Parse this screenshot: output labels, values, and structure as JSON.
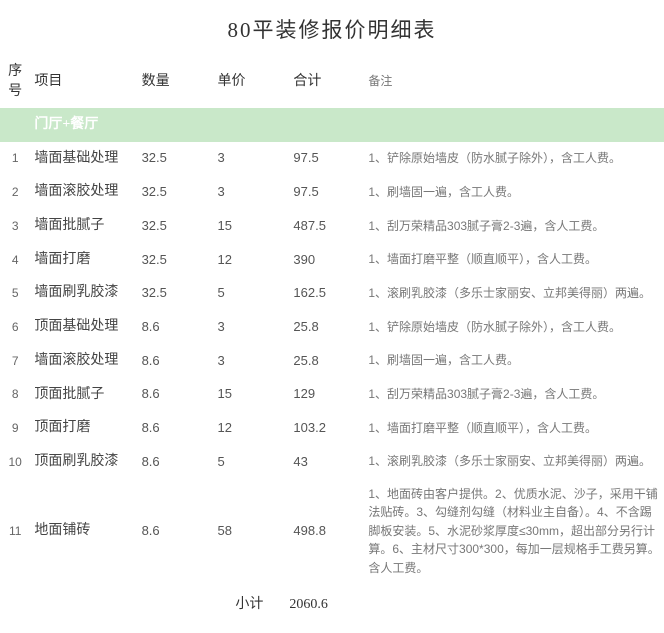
{
  "title": "80平装修报价明细表",
  "headers": {
    "idx": "序号",
    "item": "项目",
    "qty": "数量",
    "price": "单价",
    "total": "合计",
    "note": "备注"
  },
  "section": "门厅+餐厅",
  "rows": [
    {
      "idx": "1",
      "item": "墙面基础处理",
      "qty": "32.5",
      "price": "3",
      "total": "97.5",
      "note": "1、铲除原始墙皮（防水腻子除外），含工人费。"
    },
    {
      "idx": "2",
      "item": "墙面滚胶处理",
      "qty": "32.5",
      "price": "3",
      "total": "97.5",
      "note": "1、刷墙固一遍，含工人费。"
    },
    {
      "idx": "3",
      "item": "墙面批腻子",
      "qty": "32.5",
      "price": "15",
      "total": "487.5",
      "note": "1、刮万荣精品303腻子膏2-3遍，含人工费。"
    },
    {
      "idx": "4",
      "item": "墙面打磨",
      "qty": "32.5",
      "price": "12",
      "total": "390",
      "note": "1、墙面打磨平整（顺直顺平），含人工费。"
    },
    {
      "idx": "5",
      "item": "墙面刷乳胶漆",
      "qty": "32.5",
      "price": "5",
      "total": "162.5",
      "note": "1、滚刷乳胶漆（多乐士家丽安、立邦美得丽）两遍。"
    },
    {
      "idx": "6",
      "item": "顶面基础处理",
      "qty": "8.6",
      "price": "3",
      "total": "25.8",
      "note": "1、铲除原始墙皮（防水腻子除外），含工人费。"
    },
    {
      "idx": "7",
      "item": "墙面滚胶处理",
      "qty": "8.6",
      "price": "3",
      "total": "25.8",
      "note": "1、刷墙固一遍，含工人费。"
    },
    {
      "idx": "8",
      "item": "顶面批腻子",
      "qty": "8.6",
      "price": "15",
      "total": "129",
      "note": "1、刮万荣精品303腻子膏2-3遍，含人工费。"
    },
    {
      "idx": "9",
      "item": "顶面打磨",
      "qty": "8.6",
      "price": "12",
      "total": "103.2",
      "note": "1、墙面打磨平整（顺直顺平），含人工费。"
    },
    {
      "idx": "10",
      "item": "顶面刷乳胶漆",
      "qty": "8.6",
      "price": "5",
      "total": "43",
      "note": "1、滚刷乳胶漆（多乐士家丽安、立邦美得丽）两遍。"
    },
    {
      "idx": "11",
      "item": "地面铺砖",
      "qty": "8.6",
      "price": "58",
      "total": "498.8",
      "note": "1、地面砖由客户提供。2、优质水泥、沙子，采用干铺法贴砖。3、勾缝剂勾缝（材料业主自备）。4、不含踢脚板安装。5、水泥砂浆厚度≤30mm，超出部分另行计算。6、主材尺寸300*300，每加一层规格手工费另算。含人工费。"
    }
  ],
  "subtotal": {
    "label": "小计",
    "value": "2060.6"
  },
  "colors": {
    "section_bg": "#c9e8c9",
    "section_text": "#ffffff",
    "background": "#ffffff"
  }
}
